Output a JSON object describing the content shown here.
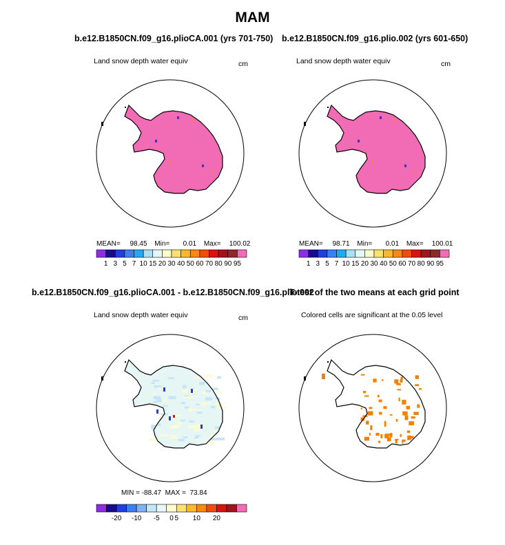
{
  "title": "MAM",
  "panels": [
    {
      "title": "b.e12.B1850CN.f09_g16.plioCA.001 (yrs 701-750)",
      "subtitle": "Land snow depth water equiv",
      "units": "cm",
      "stats": {
        "mean_label": "MEAN=",
        "mean": "98.45",
        "min_label": "Min=",
        "min": "0.01",
        "max_label": "Max=",
        "max": "100.02"
      }
    },
    {
      "title": "b.e12.B1850CN.f09_g16.plio.002 (yrs 601-650)",
      "subtitle": "Land snow depth water equiv",
      "units": "cm",
      "stats": {
        "mean_label": "MEAN=",
        "mean": "98.71",
        "min_label": "Min=",
        "min": "0.01",
        "max_label": "Max=",
        "max": "100.01"
      }
    },
    {
      "title": "b.e12.B1850CN.f09_g16.plioCA.001 - b.e12.B1850CN.f09_g16.plio.002",
      "subtitle": "Land snow depth water equiv",
      "units": "cm",
      "stats": {
        "text": "MIN = -88.47  MAX =  73.84"
      }
    },
    {
      "title": "T-test of the two means at each grid point",
      "subtitle": "Colored cells are significant at the 0.05 level"
    }
  ],
  "chart_data": [
    {
      "type": "heatmap",
      "projection": "south-polar-stereographic",
      "variable": "Land snow depth water equiv",
      "colorbar": {
        "labels": [
          "1",
          "3",
          "5",
          "7",
          "10",
          "15",
          "20",
          "30",
          "40",
          "50",
          "60",
          "70",
          "80",
          "90",
          "95"
        ],
        "colors": [
          "#8e2de2",
          "#1a0a8c",
          "#1f3fe0",
          "#3d7ff0",
          "#22aaf0",
          "#a8e1f5",
          "#e3f7f5",
          "#fbfccc",
          "#fde070",
          "#fbb829",
          "#f58a0e",
          "#ef4d0c",
          "#d9130f",
          "#a0141e",
          "#8c2a27",
          "#f26bb5"
        ]
      },
      "mean": 98.45,
      "min": 0.01,
      "max": 100.02,
      "dominant_fill": "#f26bb5"
    },
    {
      "type": "heatmap",
      "projection": "south-polar-stereographic",
      "variable": "Land snow depth water equiv",
      "colorbar": {
        "labels": [
          "1",
          "3",
          "5",
          "7",
          "10",
          "15",
          "20",
          "30",
          "40",
          "50",
          "60",
          "70",
          "80",
          "90",
          "95"
        ],
        "colors": [
          "#8e2de2",
          "#1a0a8c",
          "#1f3fe0",
          "#3d7ff0",
          "#22aaf0",
          "#a8e1f5",
          "#e3f7f5",
          "#fbfccc",
          "#fde070",
          "#fbb829",
          "#f58a0e",
          "#ef4d0c",
          "#d9130f",
          "#a0141e",
          "#8c2a27",
          "#f26bb5"
        ]
      },
      "mean": 98.71,
      "min": 0.01,
      "max": 100.01,
      "dominant_fill": "#f26bb5"
    },
    {
      "type": "heatmap",
      "projection": "south-polar-stereographic",
      "variable": "Land snow depth water equiv (difference)",
      "colorbar": {
        "labels": [
          "-20",
          "-10",
          "-5",
          "0",
          "5",
          "10",
          "20"
        ],
        "colors": [
          "#8e2de2",
          "#1a0a8c",
          "#1f3fe0",
          "#3d7ff0",
          "#7fb2f5",
          "#c6e6f7",
          "#e8f7f8",
          "#fdfbd0",
          "#fde070",
          "#fbb829",
          "#f58a0e",
          "#ef4d0c",
          "#d9130f",
          "#a0141e",
          "#f26bb5"
        ]
      },
      "min": -88.47,
      "max": 73.84,
      "dominant_fill": "#e6f6f4"
    },
    {
      "type": "heatmap",
      "projection": "south-polar-stereographic",
      "variable": "T-test significance",
      "significance_level": 0.05,
      "significant_color": "#f77f00"
    }
  ]
}
